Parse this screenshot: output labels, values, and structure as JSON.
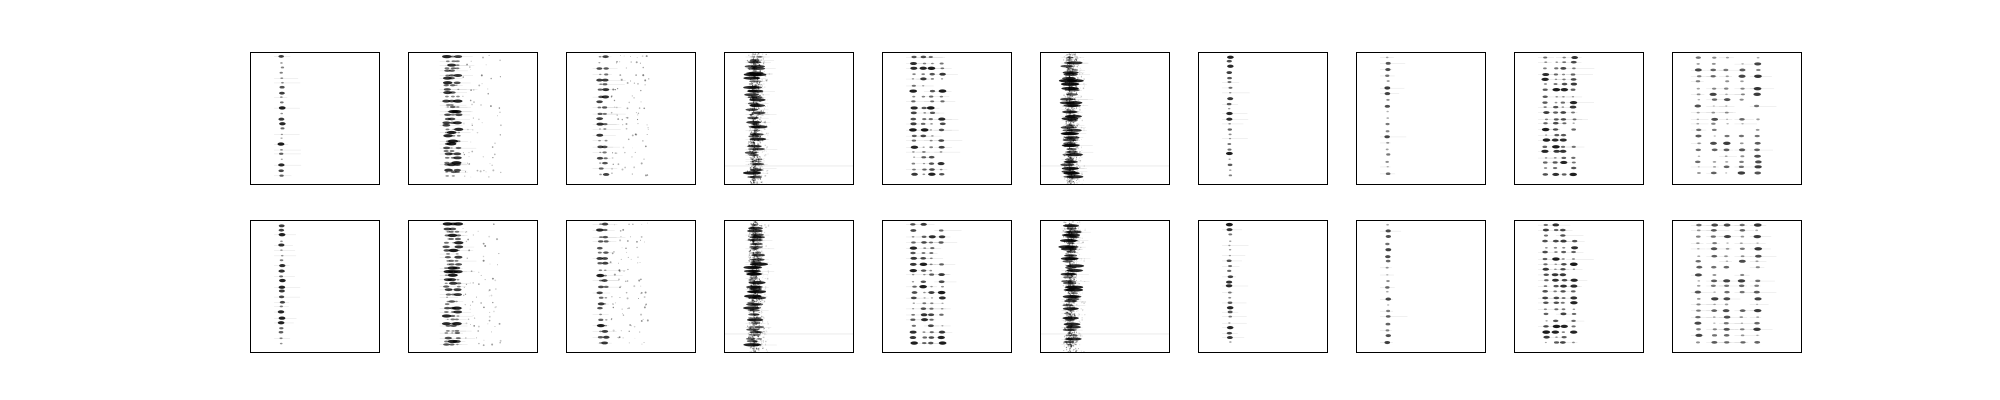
{
  "figure": {
    "rows": 2,
    "columns": 10,
    "panel_background": "#ffffff",
    "frame_color": "#000000",
    "ink_color": "#000000",
    "tick_labels": "none",
    "style": "sparse dark specks on white, arranged in vertical streaks (spectrogram-like patches)"
  },
  "panels": [
    {
      "row": 0,
      "col": 0,
      "kind": "single-streak"
    },
    {
      "row": 0,
      "col": 1,
      "kind": "dense-multi-streak"
    },
    {
      "row": 0,
      "col": 2,
      "kind": "streak-with-side-dots"
    },
    {
      "row": 0,
      "col": 3,
      "kind": "noisy-band"
    },
    {
      "row": 0,
      "col": 4,
      "kind": "multi-streak"
    },
    {
      "row": 0,
      "col": 5,
      "kind": "noisy-band"
    },
    {
      "row": 0,
      "col": 6,
      "kind": "single-streak"
    },
    {
      "row": 0,
      "col": 7,
      "kind": "single-streak-faint"
    },
    {
      "row": 0,
      "col": 8,
      "kind": "multi-streak"
    },
    {
      "row": 0,
      "col": 9,
      "kind": "wide-multi-streak"
    },
    {
      "row": 1,
      "col": 0,
      "kind": "single-streak"
    },
    {
      "row": 1,
      "col": 1,
      "kind": "dense-multi-streak"
    },
    {
      "row": 1,
      "col": 2,
      "kind": "streak-with-side-dots"
    },
    {
      "row": 1,
      "col": 3,
      "kind": "noisy-band"
    },
    {
      "row": 1,
      "col": 4,
      "kind": "multi-streak"
    },
    {
      "row": 1,
      "col": 5,
      "kind": "noisy-band"
    },
    {
      "row": 1,
      "col": 6,
      "kind": "single-streak"
    },
    {
      "row": 1,
      "col": 7,
      "kind": "single-streak-faint"
    },
    {
      "row": 1,
      "col": 8,
      "kind": "multi-streak"
    },
    {
      "row": 1,
      "col": 9,
      "kind": "wide-multi-streak"
    }
  ]
}
